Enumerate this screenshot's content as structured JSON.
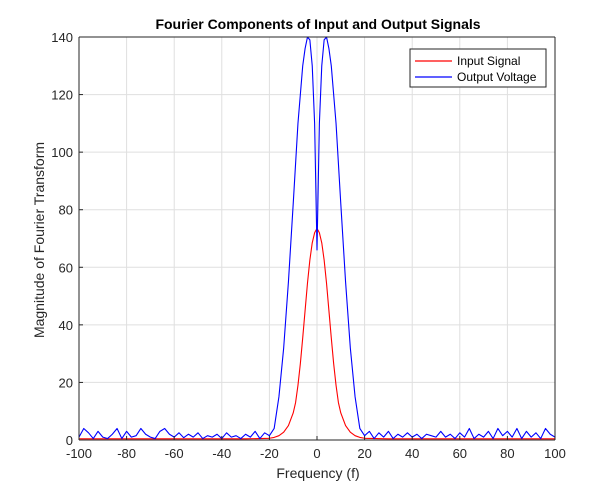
{
  "chart_data": {
    "type": "line",
    "title": "Fourier Components of Input and Output Signals",
    "xlabel": "Frequency (f)",
    "ylabel": "Magnitude of Fourier Transform",
    "xlim": [
      -100,
      100
    ],
    "ylim": [
      0,
      140
    ],
    "x_ticks": [
      -100,
      -80,
      -60,
      -40,
      -20,
      0,
      20,
      40,
      60,
      80,
      100
    ],
    "y_ticks": [
      0,
      20,
      40,
      60,
      80,
      100,
      120,
      140
    ],
    "grid": true,
    "legend_position": "top-right",
    "series": [
      {
        "name": "Input Signal",
        "color": "#ff0000",
        "x": [
          -100,
          -90,
          -80,
          -70,
          -60,
          -50,
          -40,
          -30,
          -20,
          -18,
          -16,
          -14,
          -12,
          -10,
          -9,
          -8,
          -7,
          -6,
          -5,
          -4,
          -3,
          -2,
          -1,
          0,
          1,
          2,
          3,
          4,
          5,
          6,
          7,
          8,
          9,
          10,
          12,
          14,
          16,
          18,
          20,
          30,
          40,
          50,
          60,
          70,
          80,
          90,
          100
        ],
        "y": [
          0.4,
          0.4,
          0.4,
          0.4,
          0.4,
          0.4,
          0.4,
          0.4,
          0.6,
          0.9,
          1.5,
          2.7,
          5.0,
          9.4,
          13.0,
          19.0,
          26.5,
          35.5,
          45.0,
          54.5,
          62.5,
          68.5,
          72.0,
          73.5,
          72.0,
          68.5,
          62.5,
          54.5,
          45.0,
          35.5,
          26.5,
          19.0,
          13.0,
          9.4,
          5.0,
          2.7,
          1.5,
          0.9,
          0.6,
          0.4,
          0.4,
          0.4,
          0.4,
          0.4,
          0.4,
          0.4,
          0.4
        ]
      },
      {
        "name": "Output Voltage",
        "color": "#0000ff",
        "x": [
          -100,
          -98,
          -96,
          -94,
          -92,
          -90,
          -88,
          -86,
          -84,
          -82,
          -80,
          -78,
          -76,
          -74,
          -72,
          -70,
          -68,
          -66,
          -64,
          -62,
          -60,
          -58,
          -56,
          -54,
          -52,
          -50,
          -48,
          -46,
          -44,
          -42,
          -40,
          -38,
          -36,
          -34,
          -32,
          -30,
          -28,
          -26,
          -24,
          -22,
          -20,
          -18,
          -16,
          -14,
          -12,
          -10,
          -8,
          -6,
          -5,
          -4,
          -3,
          -2,
          -1,
          0,
          1,
          2,
          3,
          4,
          5,
          6,
          8,
          10,
          12,
          14,
          16,
          18,
          20,
          22,
          24,
          26,
          28,
          30,
          32,
          34,
          36,
          38,
          40,
          42,
          44,
          46,
          48,
          50,
          52,
          54,
          56,
          58,
          60,
          62,
          64,
          66,
          68,
          70,
          72,
          74,
          76,
          78,
          80,
          82,
          84,
          86,
          88,
          90,
          92,
          94,
          96,
          98,
          100
        ],
        "y": [
          1.0,
          4.0,
          2.5,
          0.5,
          3.0,
          1.0,
          0.5,
          2.0,
          4.0,
          0.5,
          3.0,
          1.0,
          1.5,
          4.0,
          2.0,
          1.0,
          0.5,
          3.0,
          4.0,
          2.0,
          1.0,
          2.5,
          0.8,
          2.0,
          1.0,
          2.5,
          0.5,
          1.5,
          1.0,
          2.0,
          0.5,
          2.5,
          1.0,
          1.5,
          0.5,
          2.0,
          1.0,
          3.0,
          0.5,
          2.5,
          1.5,
          4.0,
          15.0,
          32.0,
          55.0,
          82.0,
          110.0,
          130.0,
          136.0,
          140.0,
          139.0,
          130.0,
          110.0,
          66.0,
          110.0,
          130.0,
          139.0,
          140.0,
          136.0,
          130.0,
          110.0,
          82.0,
          55.0,
          32.0,
          15.0,
          4.0,
          1.5,
          3.0,
          0.5,
          2.5,
          1.0,
          3.0,
          0.5,
          2.0,
          1.0,
          2.5,
          1.0,
          2.0,
          0.5,
          2.0,
          1.5,
          1.0,
          3.0,
          1.0,
          2.0,
          0.5,
          2.5,
          1.0,
          4.0,
          0.5,
          2.0,
          1.0,
          3.0,
          0.5,
          4.0,
          1.5,
          3.0,
          1.0,
          4.0,
          0.5,
          3.0,
          1.0,
          2.5,
          0.5,
          4.0,
          2.0,
          1.0
        ]
      }
    ]
  }
}
